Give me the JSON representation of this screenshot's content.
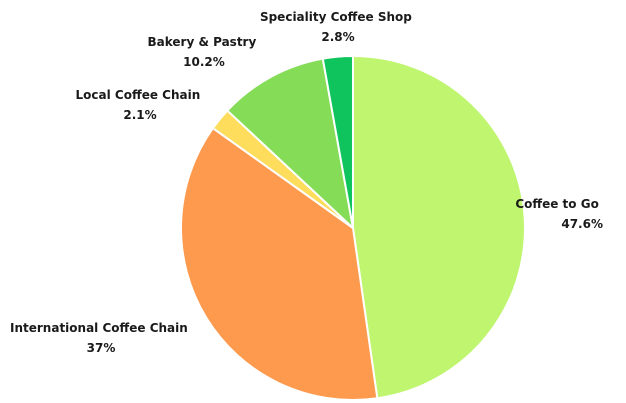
{
  "chart_data": {
    "type": "pie",
    "start_angle_deg": 0,
    "direction": "clockwise",
    "slices": [
      {
        "label": "Coffee to Go",
        "value_text": "47.6%",
        "value": 47.6,
        "color": "#bff56f"
      },
      {
        "label": "International Coffee Chain",
        "value_text": "37%",
        "value": 37.0,
        "color": "#fd9a4e"
      },
      {
        "label": "Local Coffee Chain",
        "value_text": "2.1%",
        "value": 2.1,
        "color": "#fedc5c"
      },
      {
        "label": "Bakery & Pastry",
        "value_text": "10.2%",
        "value": 10.2,
        "color": "#84dc57"
      },
      {
        "label": "Speciality Coffee Shop",
        "value_text": "2.8%",
        "value": 2.8,
        "color": "#0fc45c"
      }
    ]
  }
}
